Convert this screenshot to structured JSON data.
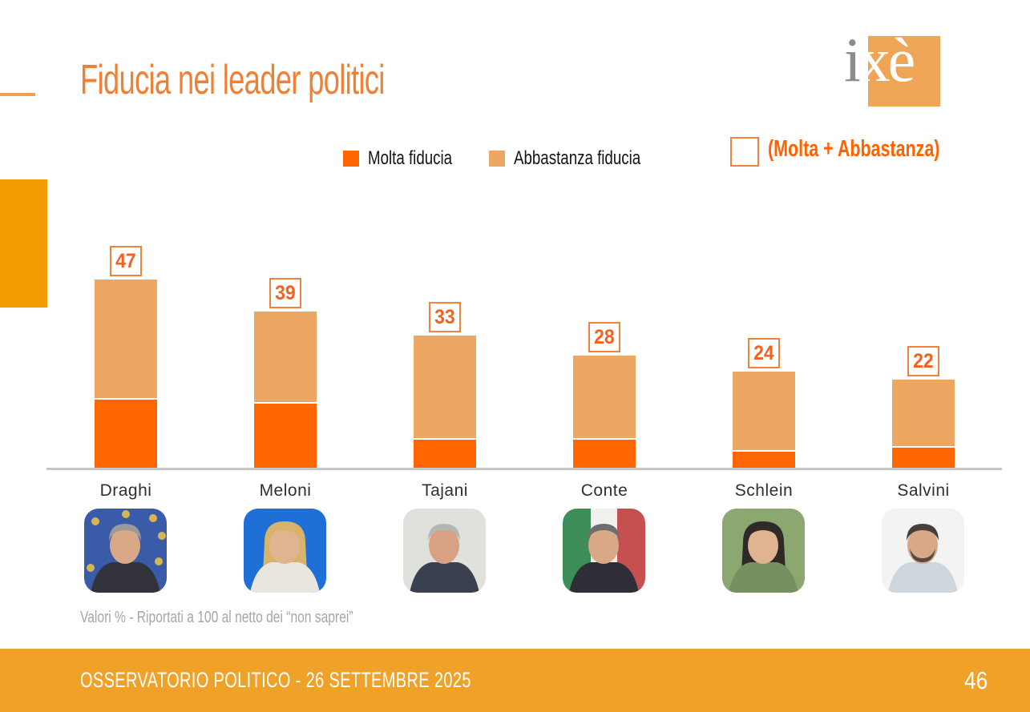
{
  "slide": {
    "title": "Fiducia nei leader politici",
    "note": "Valori % - Riportati a 100 al netto dei “non saprei”",
    "footer": "OSSERVATORIO POLITICO - 26 SETTEMBRE 2025",
    "page_number": "46",
    "logo": {
      "part_gray": "i",
      "part_white": "xè"
    }
  },
  "legend": {
    "items": [
      {
        "label": "Molta fiducia",
        "color": "#FF6600"
      },
      {
        "label": "Abbastanza fiducia",
        "color": "#ECA763"
      }
    ],
    "total_label": "(Molta + Abbastanza)"
  },
  "colors": {
    "molta": "#FF6600",
    "abba": "#ECA763",
    "number": "#F4611E",
    "box_border": "#F0823C",
    "footer_bg": "#F0A228",
    "left_rect": "#F59D00",
    "left_line": "#F0A150",
    "axis": "#C6C6C6",
    "note": "#A6A6A6",
    "name": "#2F2F2F",
    "title": "#EF8136",
    "logo_orange": "#EFA556",
    "logo_gray": "#8C8C8C",
    "accent": "#FF6200"
  },
  "chart_data": {
    "type": "bar",
    "stacked": true,
    "title": "Fiducia nei leader politici",
    "unit": "%",
    "categories": [
      "Draghi",
      "Meloni",
      "Tajani",
      "Conte",
      "Schlein",
      "Salvini"
    ],
    "series": [
      {
        "name": "Molta fiducia",
        "color": "#FF6600",
        "values": [
          17,
          16,
          7,
          7,
          4,
          5
        ]
      },
      {
        "name": "Abbastanza fiducia",
        "color": "#ECA763",
        "values": [
          30,
          23,
          26,
          21,
          20,
          17
        ]
      }
    ],
    "totals": [
      47,
      39,
      33,
      28,
      24,
      22
    ],
    "totals_label": "(Molta + Abbastanza)",
    "ylim": [
      0,
      50
    ],
    "grid": false,
    "legend_position": "top",
    "note": "Valori % - Riportati a 100 al netto dei “non saprei”"
  },
  "leaders": [
    {
      "name": "Draghi",
      "photo": {
        "style": "eu-flag",
        "bg": "#3a5ba8",
        "hair": "#9a9a9a",
        "suit": "#32323c",
        "skin": "#d9a887",
        "long_hair": false
      }
    },
    {
      "name": "Meloni",
      "photo": {
        "style": "plain",
        "bg": "#1e6fd6",
        "hair": "#d9b36a",
        "suit": "#e9e5df",
        "skin": "#e0b391",
        "long_hair": true
      }
    },
    {
      "name": "Tajani",
      "photo": {
        "style": "plain",
        "bg": "#e0e1dd",
        "hair": "#b5b5b3",
        "suit": "#3a4050",
        "skin": "#d8a183",
        "long_hair": false
      }
    },
    {
      "name": "Conte",
      "photo": {
        "style": "it-flag",
        "bg": "#f2f0ec",
        "hair": "#6e6e6e",
        "suit": "#2e2e38",
        "skin": "#d9a887",
        "long_hair": false
      }
    },
    {
      "name": "Schlein",
      "photo": {
        "style": "plain",
        "bg": "#8aa86f",
        "hair": "#2f2a28",
        "suit": "#76905f",
        "skin": "#e0b391",
        "long_hair": true
      }
    },
    {
      "name": "Salvini",
      "photo": {
        "style": "plain",
        "bg": "#f3f3f3",
        "hair": "#4a3f38",
        "suit": "#ccd6dc",
        "skin": "#d9a887",
        "long_hair": false,
        "beard": "#574a40"
      }
    }
  ]
}
